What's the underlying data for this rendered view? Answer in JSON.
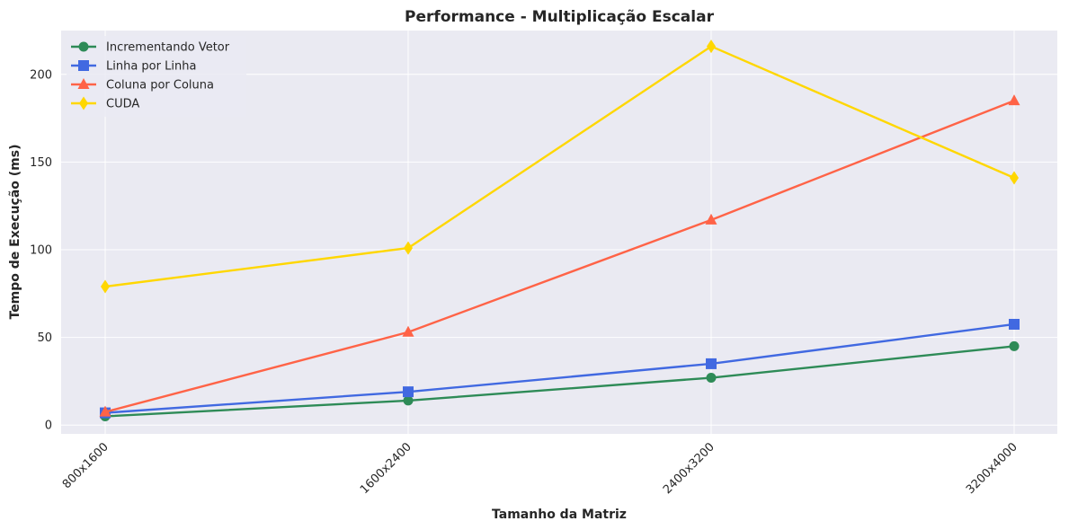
{
  "chart_data": {
    "type": "line",
    "title": "Performance - Multiplicação Escalar",
    "xlabel": "Tamanho da Matriz",
    "ylabel": "Tempo de Execução (ms)",
    "categories": [
      "800x1600",
      "1600x2400",
      "2400x3200",
      "3200x4000"
    ],
    "ylim": [
      -5,
      225
    ],
    "yticks": [
      0,
      50,
      100,
      150,
      200
    ],
    "grid": true,
    "legend": "top-left",
    "series": [
      {
        "name": "Incrementando Vetor",
        "color": "#2e8b57",
        "marker": "circle",
        "values": [
          5,
          14,
          27,
          45
        ]
      },
      {
        "name": "Linha por Linha",
        "color": "#4169e1",
        "marker": "square",
        "values": [
          7,
          19,
          35,
          57.5
        ]
      },
      {
        "name": "Coluna por Coluna",
        "color": "#ff6347",
        "marker": "triangle",
        "values": [
          7.5,
          53,
          117,
          185
        ]
      },
      {
        "name": "CUDA",
        "color": "#ffd700",
        "marker": "diamond",
        "values": [
          79,
          101,
          216,
          141
        ]
      }
    ]
  }
}
